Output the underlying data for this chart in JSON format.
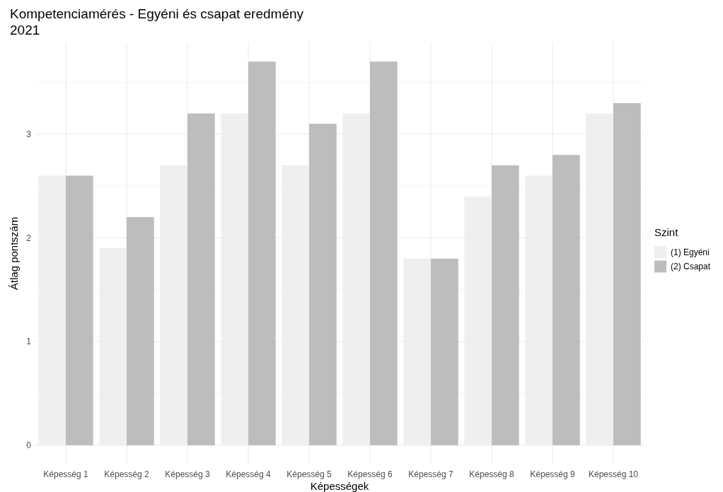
{
  "chart_data": {
    "type": "bar",
    "title": "Kompetenciamérés - Egyéni és csapat eredmény\n2021",
    "xlabel": "Képességek",
    "ylabel": "Átlag pontszám",
    "legend_title": "Szint",
    "categories": [
      "Képesség 1",
      "Képesség 2",
      "Képesség 3",
      "Képesség 4",
      "Képesség 5",
      "Képesség 6",
      "Képesség 7",
      "Képesség 8",
      "Képesség 9",
      "Képesség 10"
    ],
    "series": [
      {
        "name": "(1) Egyéni",
        "color": "#efefef",
        "values": [
          2.6,
          1.9,
          2.7,
          3.2,
          2.7,
          3.2,
          1.8,
          2.4,
          2.6,
          3.2
        ]
      },
      {
        "name": "(2) Csapat",
        "color": "#bdbdbd",
        "values": [
          2.6,
          2.2,
          3.2,
          3.7,
          3.1,
          3.7,
          1.8,
          2.7,
          2.8,
          3.3
        ]
      }
    ],
    "ylim": [
      -0.185,
      3.885
    ],
    "yticks": [
      0,
      {
        "value": 0.5,
        "label": null
      },
      1,
      {
        "value": 1.5,
        "label": null
      },
      2,
      {
        "value": 2.5,
        "label": null
      },
      3,
      {
        "value": 3.5,
        "label": null
      }
    ],
    "grid": true,
    "legend": "right"
  }
}
